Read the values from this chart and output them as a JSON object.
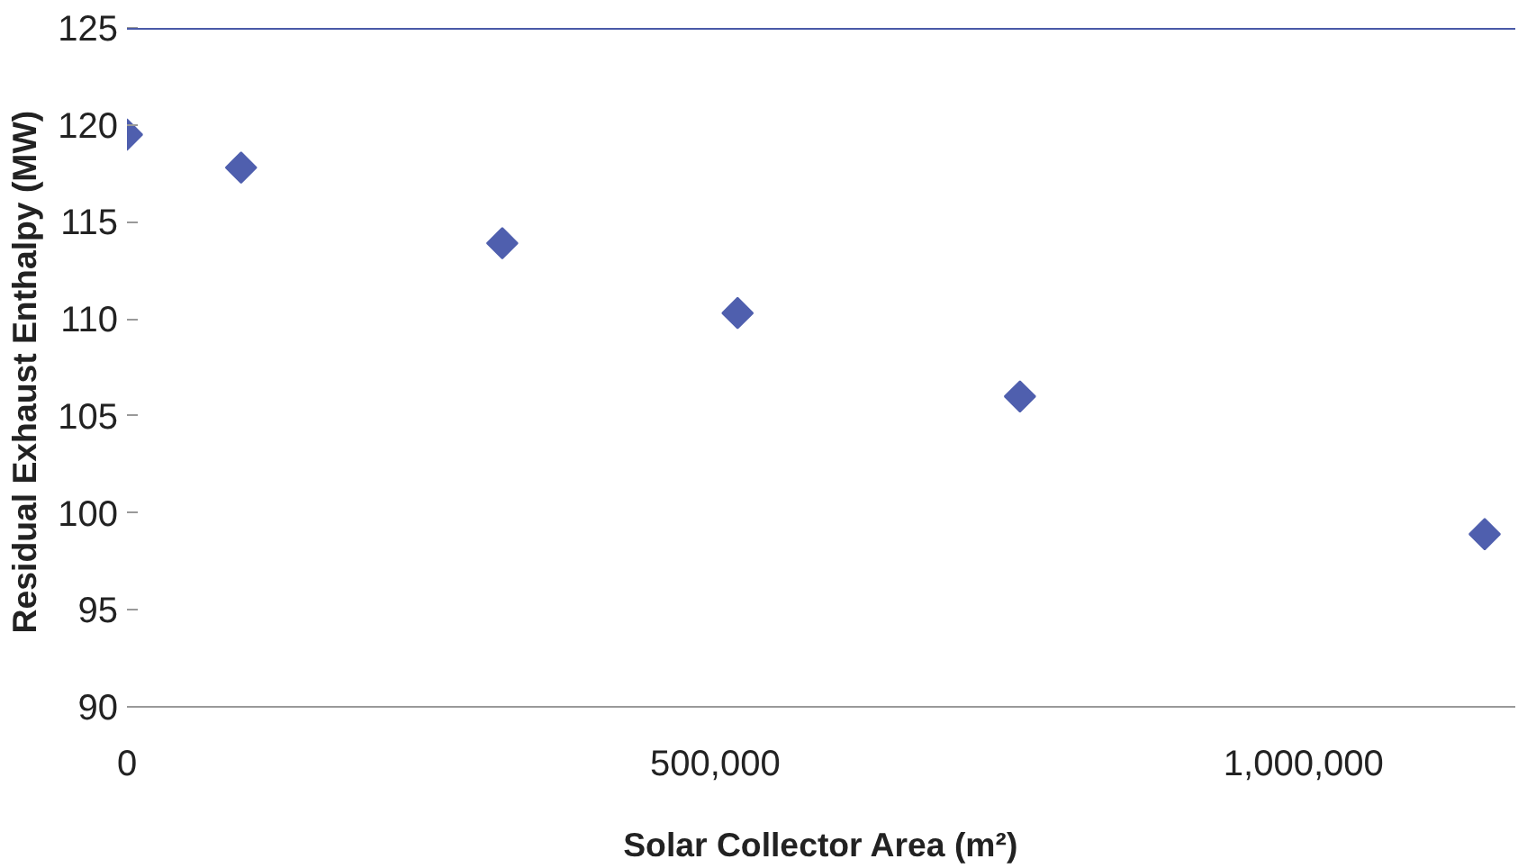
{
  "chart_data": {
    "type": "scatter",
    "xlabel": "Solar Collector Area (m²)",
    "ylabel": "Residual Exhaust  Enthalpy (MW)",
    "x": [
      0,
      97000,
      319000,
      519000,
      759000,
      1154000
    ],
    "series": [
      {
        "color": "#4f5fae",
        "values": [
          119.5,
          117.8,
          113.9,
          110.3,
          106.0,
          98.9
        ]
      }
    ],
    "xlim": [
      0,
      1180000
    ],
    "ylim": [
      90,
      125
    ],
    "xticks": [
      0,
      {
        "value": 500000,
        "label": "500,000"
      },
      {
        "value": 1000000,
        "label": "1,000,000"
      }
    ],
    "yticks": [
      90,
      95,
      100,
      105,
      110,
      115,
      120,
      125
    ],
    "ref_lines": [
      {
        "axis": "y",
        "value": 125,
        "color": "#4a5aa8"
      }
    ],
    "marker": "diamond",
    "grid": false
  }
}
